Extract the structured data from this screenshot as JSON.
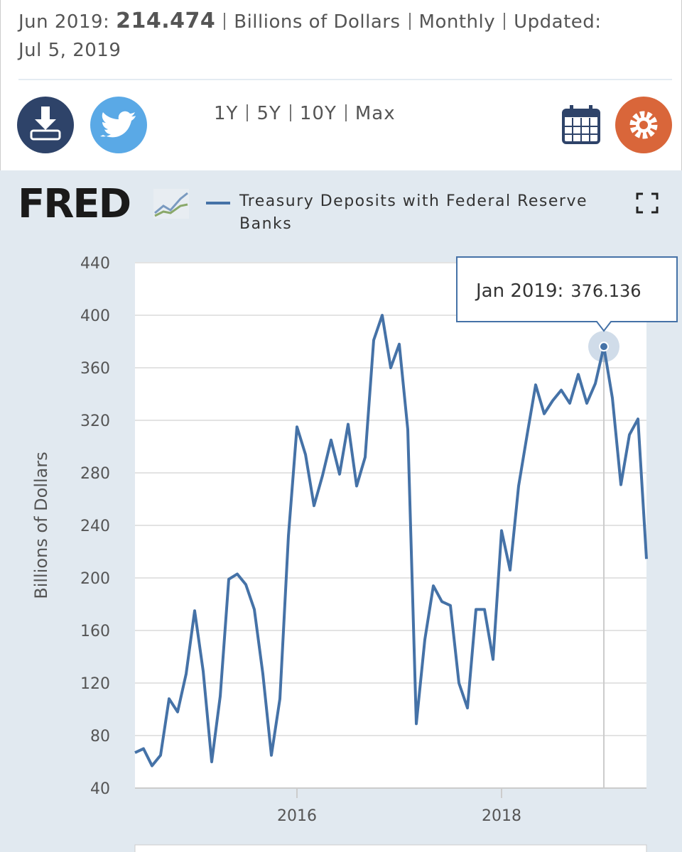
{
  "header": {
    "date": "Jun 2019:",
    "units": "Billions of Dollars",
    "frequency": "Monthly",
    "updated": "Updated:",
    "updated_date": "Jul 5, 2019"
  },
  "ranges": [
    "1Y",
    "5Y",
    "10Y",
    "Max"
  ],
  "logo": "FRED",
  "tooltip": {
    "label": "Jan 2019:"
  },
  "chart_data": {
    "type": "line",
    "ylabel": "Billions of Dollars",
    "x": [
      "2014-06",
      "2014-07",
      "2014-08",
      "2014-09",
      "2014-10",
      "2014-11",
      "2014-12",
      "2015-01",
      "2015-02",
      "2015-03",
      "2015-04",
      "2015-05",
      "2015-06",
      "2015-07",
      "2015-08",
      "2015-09",
      "2015-10",
      "2015-11",
      "2015-12",
      "2016-01",
      "2016-02",
      "2016-03",
      "2016-04",
      "2016-05",
      "2016-06",
      "2016-07",
      "2016-08",
      "2016-09",
      "2016-10",
      "2016-11",
      "2016-12",
      "2017-01",
      "2017-02",
      "2017-03",
      "2017-04",
      "2017-05",
      "2017-06",
      "2017-07",
      "2017-08",
      "2017-09",
      "2017-10",
      "2017-11",
      "2017-12",
      "2018-01",
      "2018-02",
      "2018-03",
      "2018-04",
      "2018-05",
      "2018-06",
      "2018-07",
      "2018-08",
      "2018-09",
      "2018-10",
      "2018-11",
      "2018-12",
      "2019-01",
      "2019-02",
      "2019-03",
      "2019-04",
      "2019-05",
      "2019-06"
    ],
    "series": [
      {
        "name": "Treasury Deposits with Federal Reserve Banks",
        "color": "#4572a7",
        "values": [
          67,
          70,
          57,
          65,
          108,
          98,
          127,
          175,
          129,
          60,
          110,
          199,
          203,
          195,
          176,
          127,
          65,
          108,
          232,
          315,
          294,
          255,
          278,
          305,
          279,
          317,
          270,
          292,
          381,
          400,
          360,
          378,
          313,
          89,
          153,
          194,
          182,
          179,
          120,
          101,
          176,
          176,
          138,
          236,
          206,
          270,
          309,
          347,
          325,
          335,
          343,
          333,
          355,
          333,
          348,
          376.136,
          337,
          271,
          309,
          321,
          214.474
        ]
      }
    ],
    "xlim": [
      "2014-06",
      "2019-06"
    ],
    "xticks": [
      {
        "value": "2016-01",
        "label": "2016"
      },
      {
        "value": "2018-01",
        "label": "2018"
      }
    ],
    "ylim": [
      40,
      440
    ],
    "yticks": [
      40,
      80,
      120,
      160,
      200,
      240,
      280,
      320,
      360,
      400,
      440
    ],
    "grid": true
  }
}
